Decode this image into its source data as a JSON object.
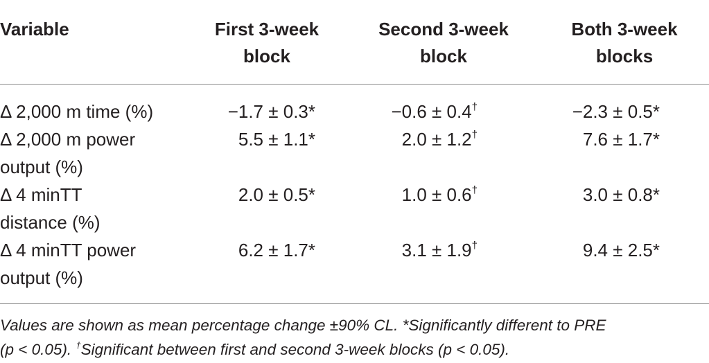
{
  "table": {
    "headers": {
      "variable": "Variable",
      "col1_line1": "First 3-week",
      "col1_line2": "block",
      "col2_line1": "Second 3-week",
      "col2_line2": "block",
      "col3_line1": "Both 3-week",
      "col3_line2": "blocks"
    },
    "rows": [
      {
        "label_line1": "Δ 2,000 m time (%)",
        "label_line2": "",
        "first": "−1.7 ± 0.3*",
        "second": "−0.6 ± 0.4",
        "second_mark": "†",
        "both": "−2.3 ± 0.5*"
      },
      {
        "label_line1": "Δ 2,000 m power",
        "label_line2": "output (%)",
        "first": "5.5 ± 1.1*",
        "second": "2.0 ± 1.2",
        "second_mark": "†",
        "both": "7.6 ± 1.7*"
      },
      {
        "label_line1": "Δ 4 minTT",
        "label_line2": "distance (%)",
        "first": "2.0 ± 0.5*",
        "second": "1.0 ± 0.6",
        "second_mark": "†",
        "both": "3.0 ± 0.8*"
      },
      {
        "label_line1": "Δ 4 minTT power",
        "label_line2": "output (%)",
        "first": "6.2 ± 1.7*",
        "second": "3.1 ± 1.9",
        "second_mark": "†",
        "both": "9.4 ± 2.5*"
      }
    ]
  },
  "footnote": {
    "line1": "Values are shown as mean percentage change ±90% CL. *Significantly different to PRE",
    "line2_start": "(p < 0.05). ",
    "line2_mark": "†",
    "line2_end": "Significant between first and second 3-week blocks (p < 0.05)."
  }
}
